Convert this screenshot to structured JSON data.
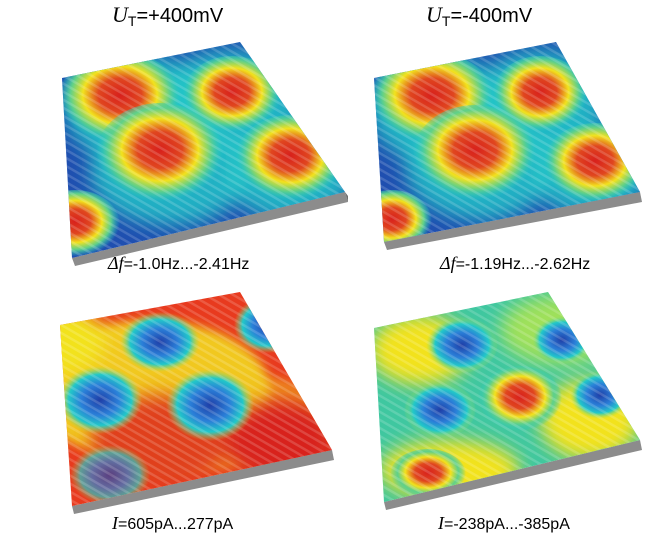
{
  "columns": [
    {
      "symbol": "U",
      "subscript": "T",
      "value": "=+400mV"
    },
    {
      "symbol": "U",
      "subscript": "T",
      "value": "=-400mV"
    }
  ],
  "panels": [
    {
      "caption_symbol": "Δf",
      "caption_value": "=-1.0Hz...-2.41Hz",
      "pattern": "bumps"
    },
    {
      "caption_symbol": "Δf",
      "caption_value": "=-1.19Hz...-2.62Hz",
      "pattern": "bumps"
    },
    {
      "caption_symbol": "I",
      "caption_value": "=605pA...277pA",
      "pattern": "pits"
    },
    {
      "caption_symbol": "I",
      "caption_value": "=-238pA...-385pA",
      "pattern": "mixed"
    }
  ],
  "colors": {
    "low": "#1f3fa8",
    "mid": "#22c8c8",
    "yellow": "#f2e21e",
    "high": "#d8201c",
    "base": "#8c8c8c"
  }
}
